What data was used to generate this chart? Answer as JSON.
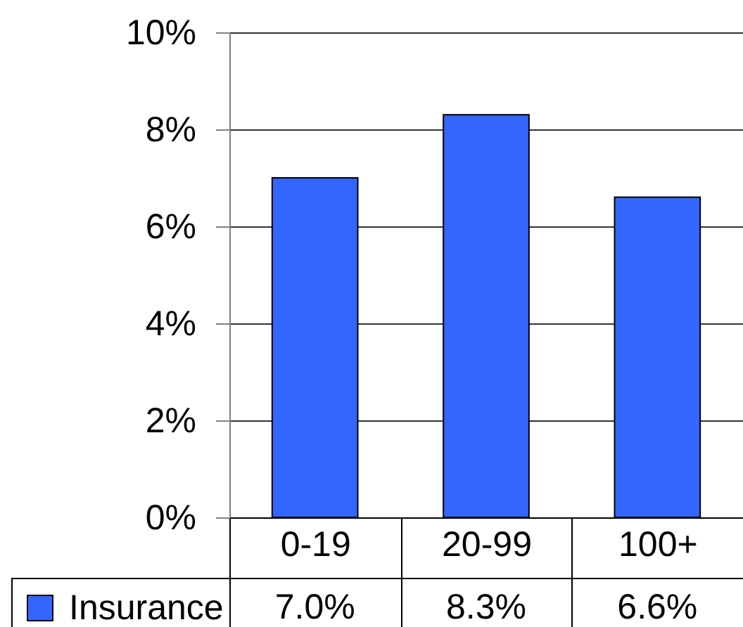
{
  "chart_data": {
    "type": "bar",
    "categories": [
      "0-19",
      "20-99",
      "100+"
    ],
    "series": [
      {
        "name": "Insurance",
        "color": "#3366ff",
        "values": [
          7.0,
          8.3,
          6.6
        ],
        "value_labels": [
          "7.0%",
          "8.3%",
          "6.6%"
        ]
      }
    ],
    "ylim": [
      0,
      10
    ],
    "yticks": [
      {
        "value": 0,
        "label": "0%"
      },
      {
        "value": 2,
        "label": "2%"
      },
      {
        "value": 4,
        "label": "4%"
      },
      {
        "value": 6,
        "label": "6%"
      },
      {
        "value": 8,
        "label": "8%"
      },
      {
        "value": 10,
        "label": "10%"
      }
    ],
    "grid": "y",
    "legend": "bottom left"
  }
}
